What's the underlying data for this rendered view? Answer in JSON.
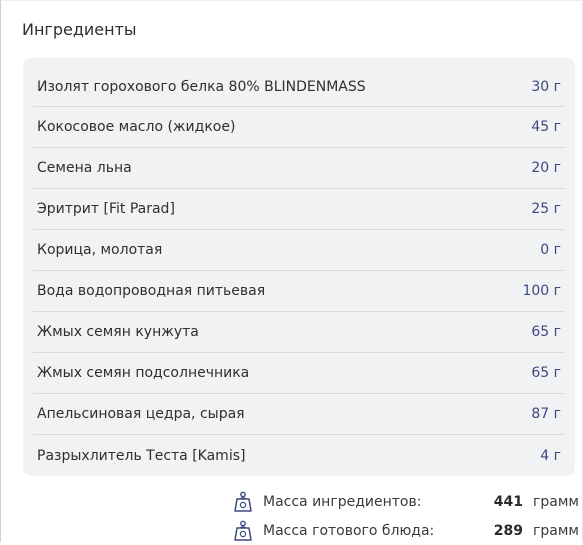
{
  "section": {
    "title": "Ингредиенты"
  },
  "ingredients": [
    {
      "name": "Изолят горохового белка 80% BLINDENMASS",
      "qty": "30 г"
    },
    {
      "name": "Кокосовое масло (жидкое)",
      "qty": "45 г"
    },
    {
      "name": "Семена льна",
      "qty": "20 г"
    },
    {
      "name": "Эритрит [Fit Parad]",
      "qty": "25 г"
    },
    {
      "name": "Корица, молотая",
      "qty": "0 г"
    },
    {
      "name": "Вода водопроводная питьевая",
      "qty": "100 г"
    },
    {
      "name": "Жмых семян кунжута",
      "qty": "65 г"
    },
    {
      "name": "Жмых семян подсолнечника",
      "qty": "65 г"
    },
    {
      "name": "Апельсиновая цедра, сырая",
      "qty": "87 г"
    },
    {
      "name": "Разрыхлитель Теста [Kamis]",
      "qty": "4 г"
    }
  ],
  "totals": {
    "ingredients_mass": {
      "label": "Масса ингредиентов:",
      "value": "441",
      "unit": "грамм",
      "icon": "weight-icon"
    },
    "dish_mass": {
      "label": "Масса готового блюда:",
      "value": "289",
      "unit": "грамм",
      "icon": "weight-icon"
    }
  },
  "colors": {
    "accent": "#3b4a82",
    "card_bg": "#f1f2f4",
    "divider": "#d9dbde"
  }
}
